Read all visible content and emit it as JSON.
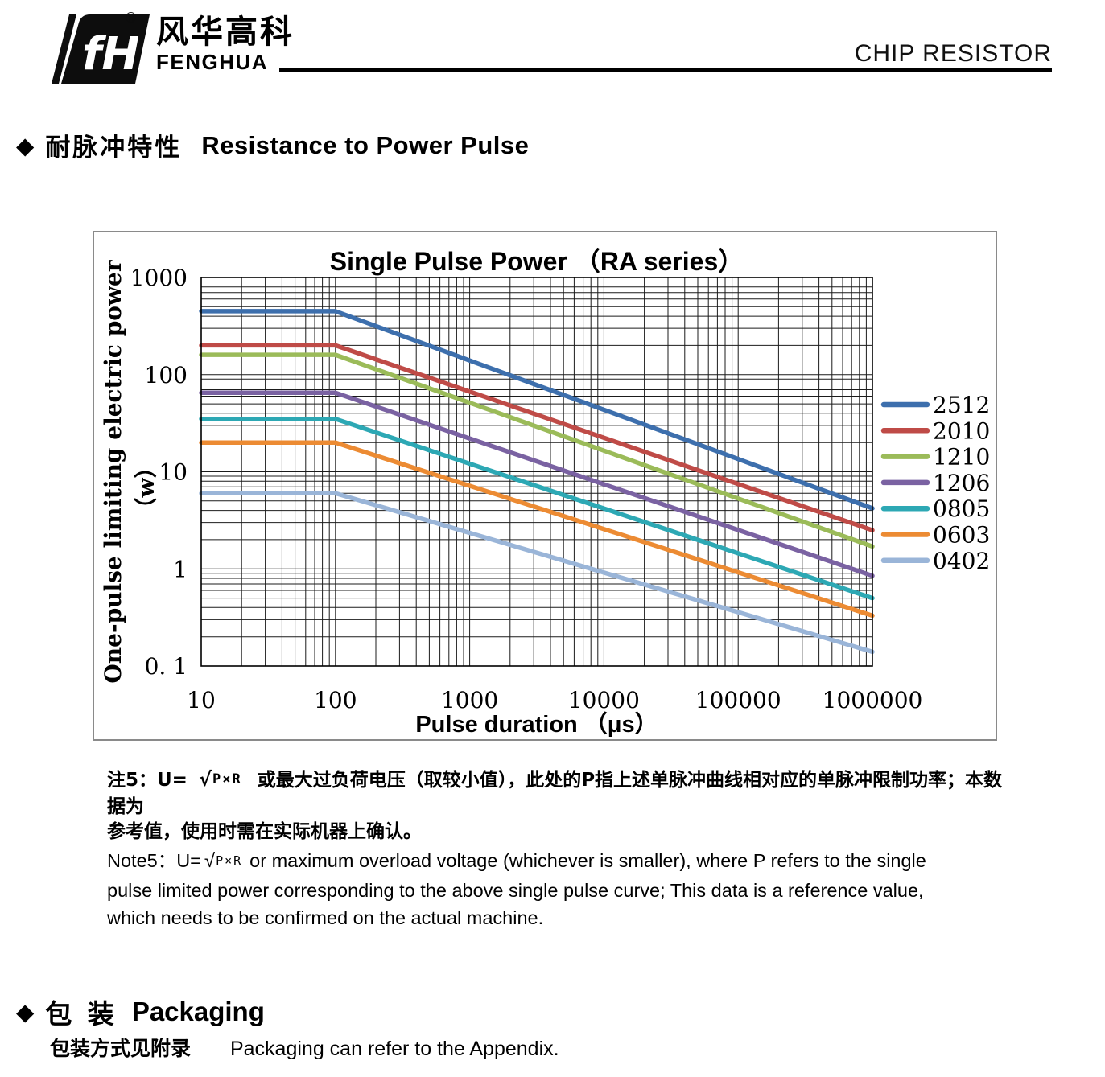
{
  "header": {
    "brand_cn": "风华高科",
    "brand_en": "FENGHUA",
    "registered": "®",
    "logo_monogram": "fH",
    "doc_title": "CHIP RESISTOR"
  },
  "section": {
    "bullet": "◆",
    "title_cn": "耐脉冲特性",
    "title_en": "Resistance to Power Pulse"
  },
  "chart_data": {
    "type": "line",
    "title": "Single Pulse Power （RA series）",
    "xlabel": "Pulse duration （μs）",
    "ylabel": "One-pulse limiting electric power",
    "ylabel_unit": "（w）",
    "x_scale": "log",
    "y_scale": "log",
    "xlim": [
      10,
      1000000
    ],
    "ylim": [
      0.1,
      1000
    ],
    "grid": "log minor gridlines on, black, both axes",
    "legend_position": "right",
    "x_ticks": [
      {
        "value": 10,
        "label": "10"
      },
      {
        "value": 100,
        "label": "100"
      },
      {
        "value": 1000,
        "label": "1000"
      },
      {
        "value": 10000,
        "label": "10000"
      },
      {
        "value": 100000,
        "label": "100000"
      },
      {
        "value": 1000000,
        "label": "1000000"
      }
    ],
    "y_ticks": [
      {
        "value": 1000,
        "label": "1000"
      },
      {
        "value": 100,
        "label": "100"
      },
      {
        "value": 10,
        "label": "10"
      },
      {
        "value": 1,
        "label": "1"
      },
      {
        "value": 0.1,
        "label": "0. 1"
      }
    ],
    "series": [
      {
        "name": "2512",
        "color": "#3d6fad",
        "x": [
          10,
          100,
          1000000
        ],
        "y": [
          450,
          450,
          4.2
        ]
      },
      {
        "name": "2010",
        "color": "#bf4b47",
        "x": [
          10,
          100,
          1000000
        ],
        "y": [
          200,
          200,
          2.5
        ]
      },
      {
        "name": "1210",
        "color": "#9bbb59",
        "x": [
          10,
          100,
          1000000
        ],
        "y": [
          160,
          160,
          1.7
        ]
      },
      {
        "name": "1206",
        "color": "#7a62a2",
        "x": [
          10,
          100,
          1000000
        ],
        "y": [
          65,
          65,
          0.85
        ]
      },
      {
        "name": "0805",
        "color": "#2da8b4",
        "x": [
          10,
          100,
          1000000
        ],
        "y": [
          35,
          35,
          0.5
        ]
      },
      {
        "name": "0603",
        "color": "#ec8b33",
        "x": [
          10,
          100,
          1000000
        ],
        "y": [
          20,
          20,
          0.33
        ]
      },
      {
        "name": "0402",
        "color": "#9ab5d8",
        "x": [
          10,
          100,
          1000000
        ],
        "y": [
          6,
          6,
          0.14
        ]
      }
    ]
  },
  "notes": {
    "cn_prefix": "注5：U=",
    "radical": "√",
    "radicand": "P×R",
    "cn_line1_rest": "或最大过负荷电压（取较小值），此处的P指上述单脉冲曲线相对应的单脉冲限制功率；本数据为",
    "cn_line2": "参考值，使用时需在实际机器上确认。",
    "en_prefix": "Note5：U=",
    "en_line1_rest": "or maximum overload voltage (whichever is smaller), where P refers to the single",
    "en_line2": "pulse limited power corresponding to the above single pulse curve; This data is a reference value,",
    "en_line3": "which needs to be confirmed on the actual machine."
  },
  "packaging": {
    "bullet": "◆",
    "title_cn": "包 装",
    "title_en": "Packaging",
    "body_cn": "包装方式见附录",
    "body_en": "Packaging can refer to the Appendix."
  }
}
